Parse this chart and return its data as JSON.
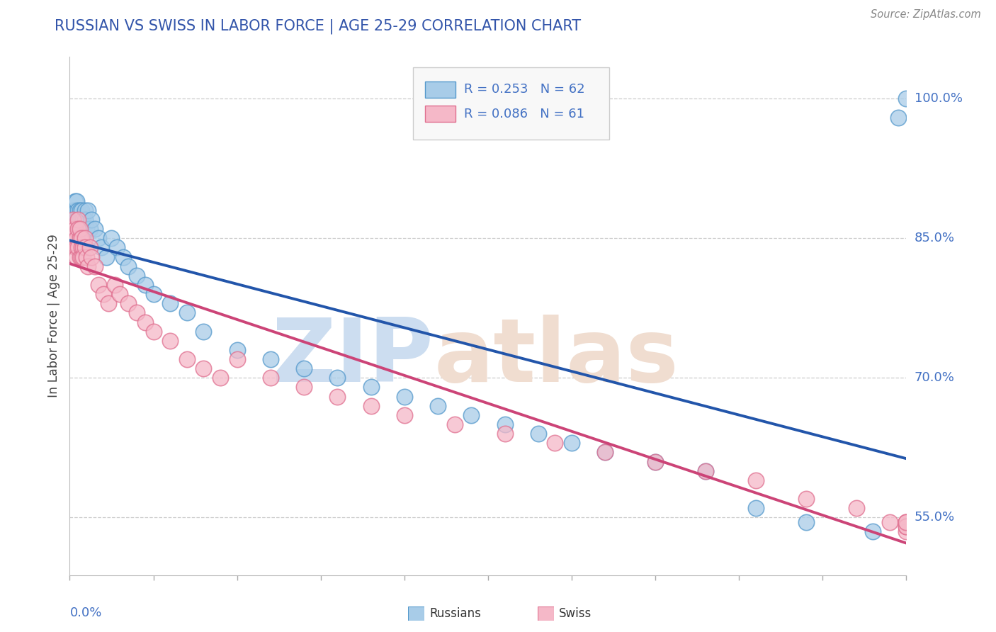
{
  "title": "RUSSIAN VS SWISS IN LABOR FORCE | AGE 25-29 CORRELATION CHART",
  "source": "Source: ZipAtlas.com",
  "ylabel": "In Labor Force | Age 25-29",
  "ytick_labels": [
    "55.0%",
    "70.0%",
    "85.0%",
    "100.0%"
  ],
  "ytick_vals": [
    0.55,
    0.7,
    0.85,
    1.0
  ],
  "xmin": 0.0,
  "xmax": 0.5,
  "ymin": 0.488,
  "ymax": 1.045,
  "legend_r_russian": "0.253",
  "legend_n_russian": "62",
  "legend_r_swiss": "0.086",
  "legend_n_swiss": "61",
  "blue_fill": "#a8cce8",
  "blue_edge": "#5599cc",
  "pink_fill": "#f5b8c8",
  "pink_edge": "#e07090",
  "blue_line_color": "#2255aa",
  "pink_line_color": "#cc4477",
  "title_color": "#3355aa",
  "axis_label_color": "#4472c4",
  "grid_color": "#cccccc",
  "russians_x": [
    0.001,
    0.002,
    0.002,
    0.003,
    0.003,
    0.003,
    0.004,
    0.004,
    0.004,
    0.004,
    0.005,
    0.005,
    0.005,
    0.005,
    0.006,
    0.006,
    0.006,
    0.006,
    0.007,
    0.007,
    0.007,
    0.008,
    0.008,
    0.009,
    0.009,
    0.01,
    0.011,
    0.012,
    0.013,
    0.015,
    0.017,
    0.019,
    0.022,
    0.025,
    0.028,
    0.032,
    0.035,
    0.04,
    0.045,
    0.05,
    0.06,
    0.07,
    0.08,
    0.1,
    0.12,
    0.14,
    0.16,
    0.18,
    0.2,
    0.22,
    0.24,
    0.26,
    0.28,
    0.3,
    0.32,
    0.35,
    0.38,
    0.41,
    0.44,
    0.48,
    0.495,
    0.5
  ],
  "russians_y": [
    0.87,
    0.88,
    0.86,
    0.87,
    0.88,
    0.89,
    0.86,
    0.87,
    0.88,
    0.89,
    0.87,
    0.88,
    0.86,
    0.87,
    0.86,
    0.87,
    0.88,
    0.86,
    0.87,
    0.88,
    0.86,
    0.87,
    0.86,
    0.88,
    0.87,
    0.86,
    0.88,
    0.86,
    0.87,
    0.86,
    0.85,
    0.84,
    0.83,
    0.85,
    0.84,
    0.83,
    0.82,
    0.81,
    0.8,
    0.79,
    0.78,
    0.77,
    0.75,
    0.73,
    0.72,
    0.71,
    0.7,
    0.69,
    0.68,
    0.67,
    0.66,
    0.65,
    0.64,
    0.63,
    0.62,
    0.61,
    0.6,
    0.56,
    0.545,
    0.535,
    0.98,
    1.0
  ],
  "swiss_x": [
    0.001,
    0.002,
    0.002,
    0.003,
    0.003,
    0.004,
    0.004,
    0.004,
    0.005,
    0.005,
    0.005,
    0.006,
    0.006,
    0.006,
    0.007,
    0.007,
    0.007,
    0.008,
    0.008,
    0.009,
    0.009,
    0.01,
    0.011,
    0.012,
    0.013,
    0.015,
    0.017,
    0.02,
    0.023,
    0.027,
    0.03,
    0.035,
    0.04,
    0.045,
    0.05,
    0.06,
    0.07,
    0.08,
    0.09,
    0.1,
    0.12,
    0.14,
    0.16,
    0.18,
    0.2,
    0.23,
    0.26,
    0.29,
    0.32,
    0.35,
    0.38,
    0.41,
    0.44,
    0.47,
    0.49,
    0.5,
    0.5,
    0.5,
    0.5,
    0.5,
    0.5
  ],
  "swiss_y": [
    0.86,
    0.85,
    0.87,
    0.84,
    0.86,
    0.85,
    0.84,
    0.83,
    0.87,
    0.86,
    0.84,
    0.83,
    0.85,
    0.86,
    0.84,
    0.83,
    0.85,
    0.84,
    0.83,
    0.85,
    0.84,
    0.83,
    0.82,
    0.84,
    0.83,
    0.82,
    0.8,
    0.79,
    0.78,
    0.8,
    0.79,
    0.78,
    0.77,
    0.76,
    0.75,
    0.74,
    0.72,
    0.71,
    0.7,
    0.72,
    0.7,
    0.69,
    0.68,
    0.67,
    0.66,
    0.65,
    0.64,
    0.63,
    0.62,
    0.61,
    0.6,
    0.59,
    0.57,
    0.56,
    0.545,
    0.535,
    0.545,
    0.54,
    0.545,
    0.54,
    0.545
  ]
}
